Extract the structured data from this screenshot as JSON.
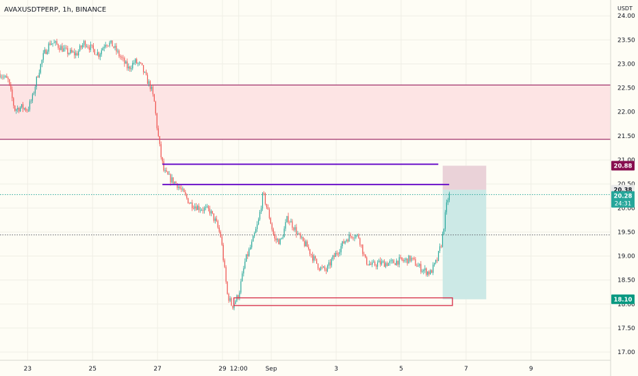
{
  "header": {
    "symbol_title": "AVAXUSDTPERP, 1h, BINANCE"
  },
  "chart_data": {
    "type": "candlestick",
    "title": "AVAXUSDTPERP, 1h, BINANCE",
    "currency_label": "USDT",
    "x_ticks": [
      {
        "label": "23",
        "t": 0.0
      },
      {
        "label": "25",
        "t": 2.0
      },
      {
        "label": "27",
        "t": 4.0
      },
      {
        "label": "29",
        "t": 6.0
      },
      {
        "label": "12:00",
        "t": 6.5
      },
      {
        "label": "Sep",
        "t": 7.5
      },
      {
        "label": "3",
        "t": 9.5
      },
      {
        "label": "5",
        "t": 11.5
      },
      {
        "label": "7",
        "t": 13.5
      },
      {
        "label": "9",
        "t": 15.5
      }
    ],
    "x_range": [
      -0.85,
      17.95
    ],
    "y_ticks": [
      17.0,
      17.5,
      18.0,
      18.5,
      19.0,
      19.5,
      20.0,
      20.5,
      21.0,
      21.5,
      22.0,
      22.5,
      23.0,
      23.5,
      24.0
    ],
    "y_tick_labels": [
      "17.00",
      "17.50",
      "18.00",
      "18.50",
      "19.00",
      "19.50",
      "20.00",
      "20.50",
      "21.00",
      "21.50",
      "22.00",
      "22.50",
      "23.00",
      "23.50",
      "24.00"
    ],
    "y_range": [
      16.83,
      24.33
    ],
    "price_path": [
      [
        -0.85,
        22.8
      ],
      [
        -0.6,
        22.65
      ],
      [
        -0.4,
        22.05
      ],
      [
        -0.2,
        22.1
      ],
      [
        0.0,
        22.05
      ],
      [
        0.15,
        22.3
      ],
      [
        0.3,
        22.75
      ],
      [
        0.5,
        23.2
      ],
      [
        0.7,
        23.45
      ],
      [
        0.9,
        23.4
      ],
      [
        1.2,
        23.25
      ],
      [
        1.5,
        23.2
      ],
      [
        1.75,
        23.45
      ],
      [
        2.0,
        23.3
      ],
      [
        2.2,
        23.2
      ],
      [
        2.4,
        23.45
      ],
      [
        2.6,
        23.4
      ],
      [
        2.85,
        23.15
      ],
      [
        3.1,
        22.9
      ],
      [
        3.3,
        23.05
      ],
      [
        3.5,
        22.95
      ],
      [
        3.65,
        22.7
      ],
      [
        3.8,
        22.5
      ],
      [
        3.9,
        22.2
      ],
      [
        4.0,
        21.6
      ],
      [
        4.1,
        21.1
      ],
      [
        4.2,
        20.75
      ],
      [
        4.4,
        20.6
      ],
      [
        4.6,
        20.5
      ],
      [
        4.8,
        20.3
      ],
      [
        5.0,
        20.1
      ],
      [
        5.3,
        20.0
      ],
      [
        5.6,
        19.95
      ],
      [
        5.8,
        19.7
      ],
      [
        5.95,
        19.4
      ],
      [
        6.05,
        18.8
      ],
      [
        6.15,
        18.2
      ],
      [
        6.3,
        17.95
      ],
      [
        6.5,
        18.2
      ],
      [
        6.7,
        18.9
      ],
      [
        6.9,
        19.25
      ],
      [
        7.1,
        19.7
      ],
      [
        7.25,
        20.3
      ],
      [
        7.45,
        19.8
      ],
      [
        7.6,
        19.35
      ],
      [
        7.8,
        19.3
      ],
      [
        8.0,
        19.8
      ],
      [
        8.2,
        19.6
      ],
      [
        8.4,
        19.35
      ],
      [
        8.6,
        19.2
      ],
      [
        8.8,
        18.95
      ],
      [
        9.0,
        18.75
      ],
      [
        9.2,
        18.7
      ],
      [
        9.4,
        18.95
      ],
      [
        9.6,
        19.15
      ],
      [
        9.8,
        19.35
      ],
      [
        10.0,
        19.45
      ],
      [
        10.2,
        19.4
      ],
      [
        10.4,
        18.9
      ],
      [
        10.6,
        18.8
      ],
      [
        10.8,
        18.85
      ],
      [
        11.0,
        18.85
      ],
      [
        11.2,
        18.85
      ],
      [
        11.4,
        18.9
      ],
      [
        11.6,
        18.9
      ],
      [
        11.8,
        18.95
      ],
      [
        12.0,
        18.8
      ],
      [
        12.2,
        18.7
      ],
      [
        12.4,
        18.65
      ],
      [
        12.6,
        18.9
      ],
      [
        12.75,
        19.3
      ],
      [
        12.85,
        19.8
      ],
      [
        12.92,
        20.15
      ],
      [
        12.99,
        20.28
      ]
    ],
    "horizontal_levels": {
      "resistance_zone": [
        21.43,
        22.56
      ],
      "purple_line_upper": 20.91,
      "purple_line_lower": 20.49,
      "support_box": [
        17.97,
        18.13
      ],
      "dotted_level": 19.44
    },
    "position_tool": {
      "entry": 20.38,
      "stop": 20.88,
      "target": 18.1
    },
    "price_tags": {
      "stop_label": "20.88",
      "entry_label": "20.38",
      "last_price": "20.28",
      "countdown": "24:31",
      "target_label": "18.10"
    },
    "colors": {
      "up": "#26a69a",
      "down": "#ef5350",
      "zone_fill": "#fde4e4",
      "zone_line": "#a0306a",
      "purple": "#6a11c9",
      "support_box": "#d8374f",
      "stop_fill": "#ead2d8",
      "target_fill": "#cce9e6",
      "tag_stop": "#880e4f",
      "tag_entry": "#e9e9e9",
      "tag_last": "#26a69a",
      "tag_target": "#089981"
    }
  }
}
